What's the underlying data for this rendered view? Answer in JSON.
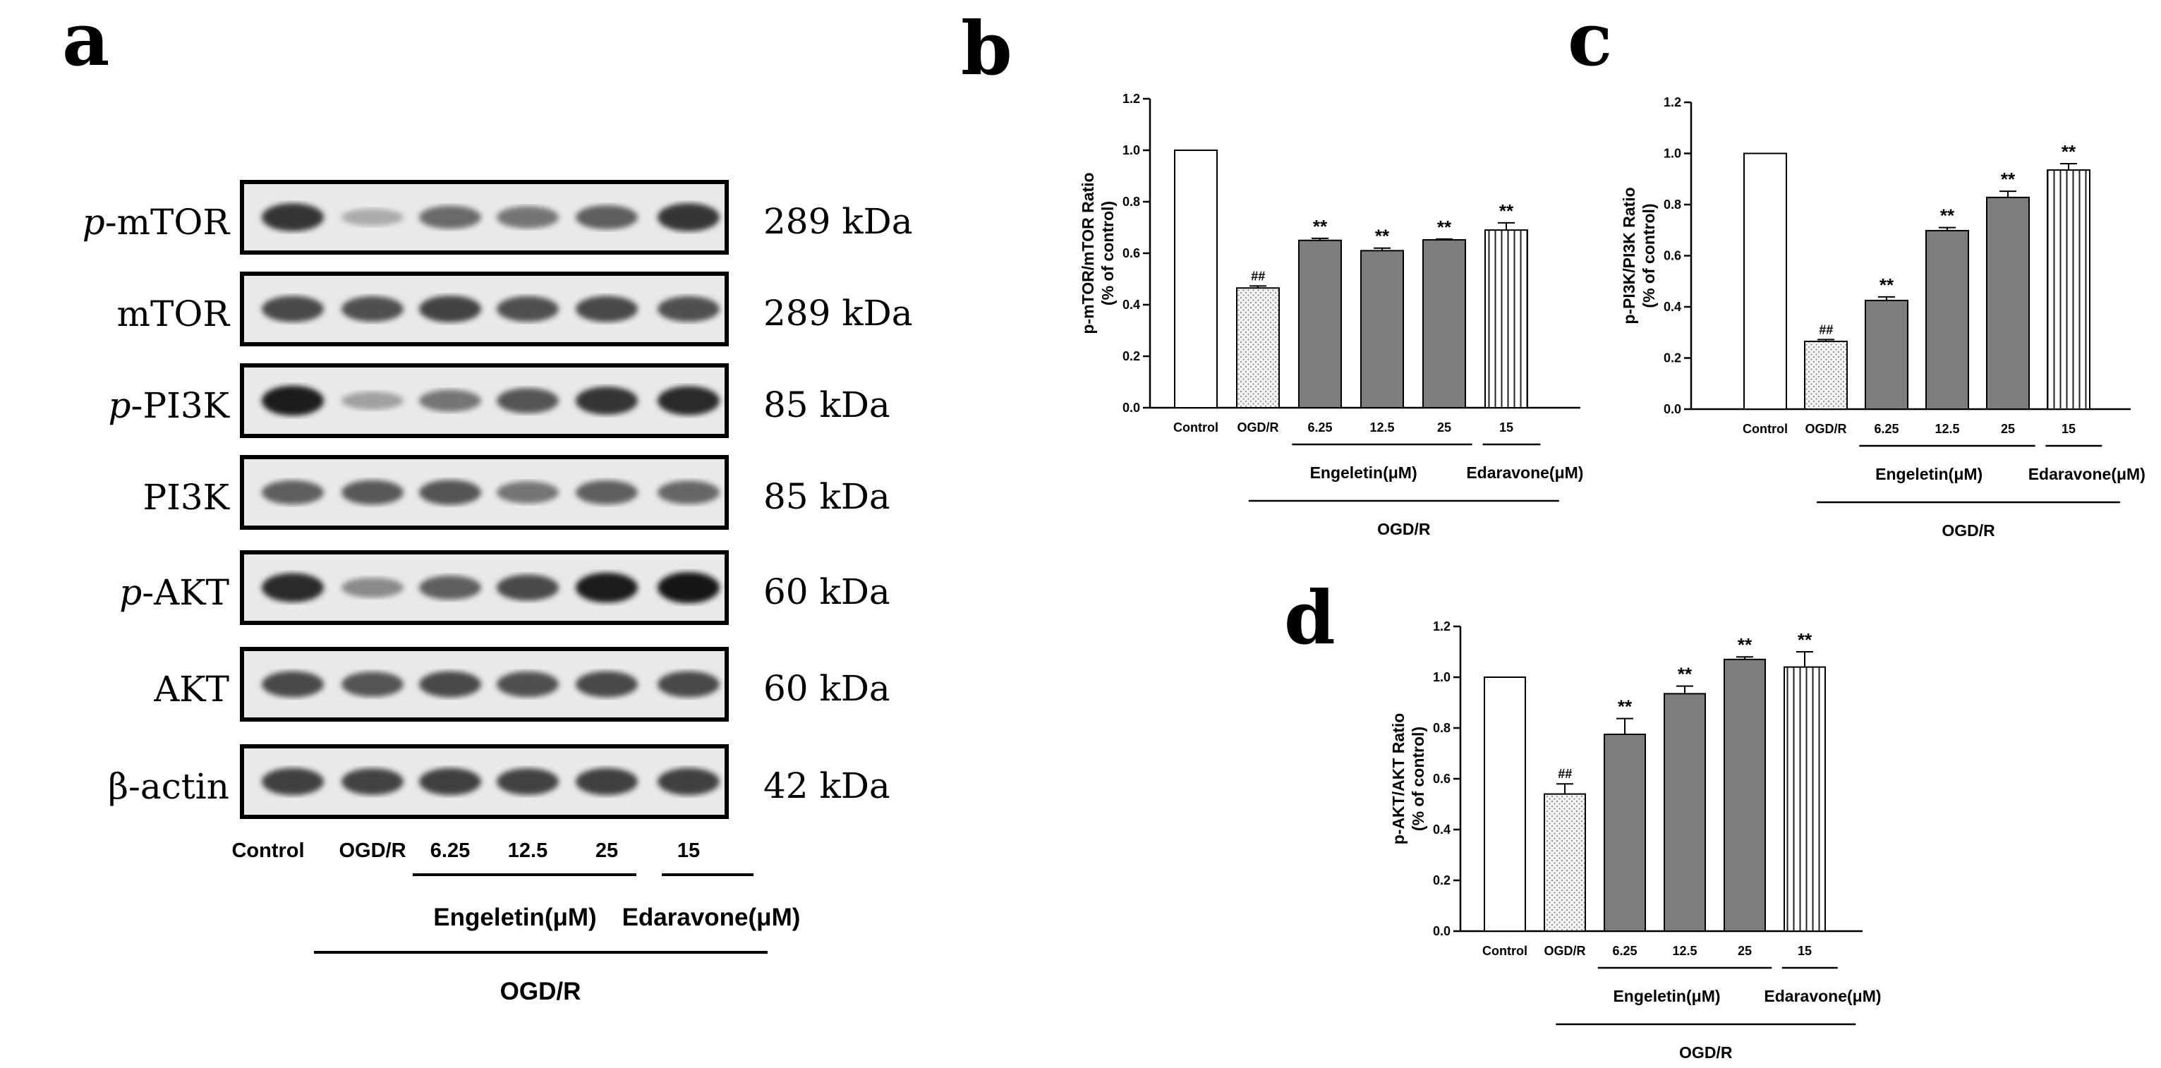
{
  "panels": {
    "a": "a",
    "b": "b",
    "c": "c",
    "d": "d"
  },
  "colors": {
    "control": "#ffffff",
    "ogdr": "#f2f2f2",
    "engeletin": "#7d7d7d",
    "edaravone": "#ffffff",
    "axis": "#000000"
  },
  "western_blot": {
    "rows": [
      {
        "prefix": "p",
        "name": "-mTOR",
        "kda": "289 kDa",
        "intensity": [
          0.85,
          0.3,
          0.6,
          0.55,
          0.65,
          0.85
        ]
      },
      {
        "prefix": "",
        "name": "mTOR",
        "kda": "289 kDa",
        "intensity": [
          0.75,
          0.72,
          0.78,
          0.72,
          0.75,
          0.72
        ]
      },
      {
        "prefix": "p",
        "name": "-PI3K",
        "kda": "85 kDa",
        "intensity": [
          0.95,
          0.35,
          0.55,
          0.7,
          0.85,
          0.9
        ]
      },
      {
        "prefix": "",
        "name": "PI3K",
        "kda": "85 kDa",
        "intensity": [
          0.65,
          0.68,
          0.7,
          0.55,
          0.65,
          0.62
        ]
      },
      {
        "prefix": "p",
        "name": "-AKT",
        "kda": "60 kDa",
        "intensity": [
          0.9,
          0.45,
          0.65,
          0.75,
          0.95,
          1.0
        ]
      },
      {
        "prefix": "",
        "name": "AKT",
        "kda": "60 kDa",
        "intensity": [
          0.75,
          0.7,
          0.75,
          0.72,
          0.75,
          0.75
        ]
      },
      {
        "prefix": "",
        "name": "β-actin",
        "kda": "42 kDa",
        "intensity": [
          0.8,
          0.78,
          0.8,
          0.78,
          0.8,
          0.8
        ]
      }
    ],
    "lanes": [
      "Control",
      "OGD/R",
      "6.25",
      "12.5",
      "25",
      "15"
    ],
    "group1": "Engeletin(μM)",
    "group2": "Edaravone(μM)",
    "group_all": "OGD/R"
  },
  "chart_data": [
    {
      "panel": "b",
      "type": "bar",
      "categories": [
        "Control",
        "OGD/R",
        "6.25",
        "12.5",
        "25",
        "15"
      ],
      "values": [
        1.0,
        0.465,
        0.65,
        0.61,
        0.652,
        0.69
      ],
      "errors": [
        0,
        0.008,
        0.008,
        0.01,
        0.003,
        0.028
      ],
      "annotations": [
        "",
        "##",
        "**",
        "**",
        "**",
        "**"
      ],
      "ylabel": [
        "p-mTOR/mTOR Ratio",
        "(% of control)"
      ],
      "ylim": [
        0,
        1.2
      ],
      "yticks": [
        "0.0",
        "0.2",
        "0.4",
        "0.6",
        "0.8",
        "1.0",
        "1.2"
      ],
      "group1": "Engeletin(μM)",
      "group2": "Edaravone(μM)",
      "group_all": "OGD/R"
    },
    {
      "panel": "c",
      "type": "bar",
      "categories": [
        "Control",
        "OGD/R",
        "6.25",
        "12.5",
        "25",
        "15"
      ],
      "values": [
        1.0,
        0.265,
        0.425,
        0.698,
        0.828,
        0.935
      ],
      "errors": [
        0,
        0.007,
        0.014,
        0.012,
        0.024,
        0.025
      ],
      "annotations": [
        "",
        "##",
        "**",
        "**",
        "**",
        "**"
      ],
      "ylabel": [
        "p-PI3K/PI3K Ratio",
        "(% of control)"
      ],
      "ylim": [
        0,
        1.2
      ],
      "yticks": [
        "0.0",
        "0.2",
        "0.4",
        "0.6",
        "0.8",
        "1.0",
        "1.2"
      ],
      "group1": "Engeletin(μM)",
      "group2": "Edaravone(μM)",
      "group_all": "OGD/R"
    },
    {
      "panel": "d",
      "type": "bar",
      "categories": [
        "Control",
        "OGD/R",
        "6.25",
        "12.5",
        "25",
        "15"
      ],
      "values": [
        1.0,
        0.54,
        0.775,
        0.935,
        1.07,
        1.04
      ],
      "errors": [
        0,
        0.04,
        0.062,
        0.03,
        0.01,
        0.06
      ],
      "annotations": [
        "",
        "##",
        "**",
        "**",
        "**",
        "**"
      ],
      "ylabel": [
        "p-AKT/AKT Ratio",
        "(% of control)"
      ],
      "ylim": [
        0,
        1.2
      ],
      "yticks": [
        "0.0",
        "0.2",
        "0.4",
        "0.6",
        "0.8",
        "1.0",
        "1.2"
      ],
      "group1": "Engeletin(μM)",
      "group2": "Edaravone(μM)",
      "group_all": "OGD/R"
    }
  ]
}
